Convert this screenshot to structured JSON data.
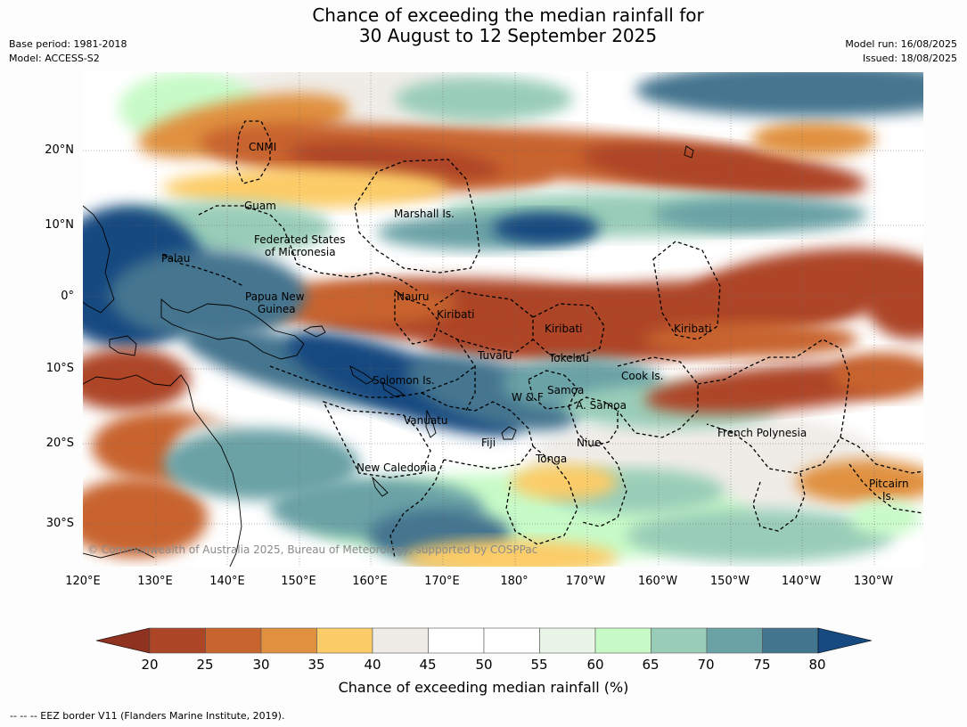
{
  "title": {
    "line1": "Chance of exceeding the median rainfall for",
    "line2": "30 August to 12 September 2025"
  },
  "meta": {
    "base_period": "Base period: 1981-2018",
    "model": "Model: ACCESS-S2",
    "model_run": "Model run: 16/08/2025",
    "issued": "Issued: 18/08/2025"
  },
  "map": {
    "lat_ticks": [
      "20°N",
      "10°N",
      "0°",
      "10°S",
      "20°S",
      "30°S"
    ],
    "lon_ticks": [
      "120°E",
      "130°E",
      "140°E",
      "150°E",
      "160°E",
      "170°E",
      "180°",
      "170°W",
      "160°W",
      "150°W",
      "140°W",
      "130°W"
    ],
    "places": [
      "CNMI",
      "Guam",
      "Marshall Is.",
      "Federated States",
      "of Micronesia",
      "Palau",
      "Papua New",
      "Guinea",
      "Nauru",
      "Kiribati",
      "Kiribati",
      "Kiribati",
      "Tuvalu",
      "Tokelau",
      "Cook Is.",
      "Solomon Is.",
      "Samoa",
      "W & F",
      "A. Samoa",
      "Vanuatu",
      "Fiji",
      "Niue",
      "French Polynesia",
      "Tonga",
      "New Caledonia",
      "Pitcairn",
      "Is."
    ],
    "copyright": "© Commonwealth of Australia 2025, Bureau of Meteorology, supported by COSPPac"
  },
  "colorbar": {
    "ticks": [
      "20",
      "25",
      "30",
      "35",
      "40",
      "45",
      "50",
      "55",
      "60",
      "65",
      "70",
      "75",
      "80"
    ],
    "colors": [
      "#8f3220",
      "#ad4527",
      "#c8642e",
      "#e0913f",
      "#fccc68",
      "#efece7",
      "#ffffff",
      "#ffffff",
      "#e9f6e7",
      "#c7fac7",
      "#9acdb8",
      "#6aa2a6",
      "#44758f",
      "#164a80"
    ],
    "label": "Chance of exceeding median rainfall (%)"
  },
  "footnote": "--  --  -- EEZ border V11 (Flanders Marine Institute, 2019)."
}
